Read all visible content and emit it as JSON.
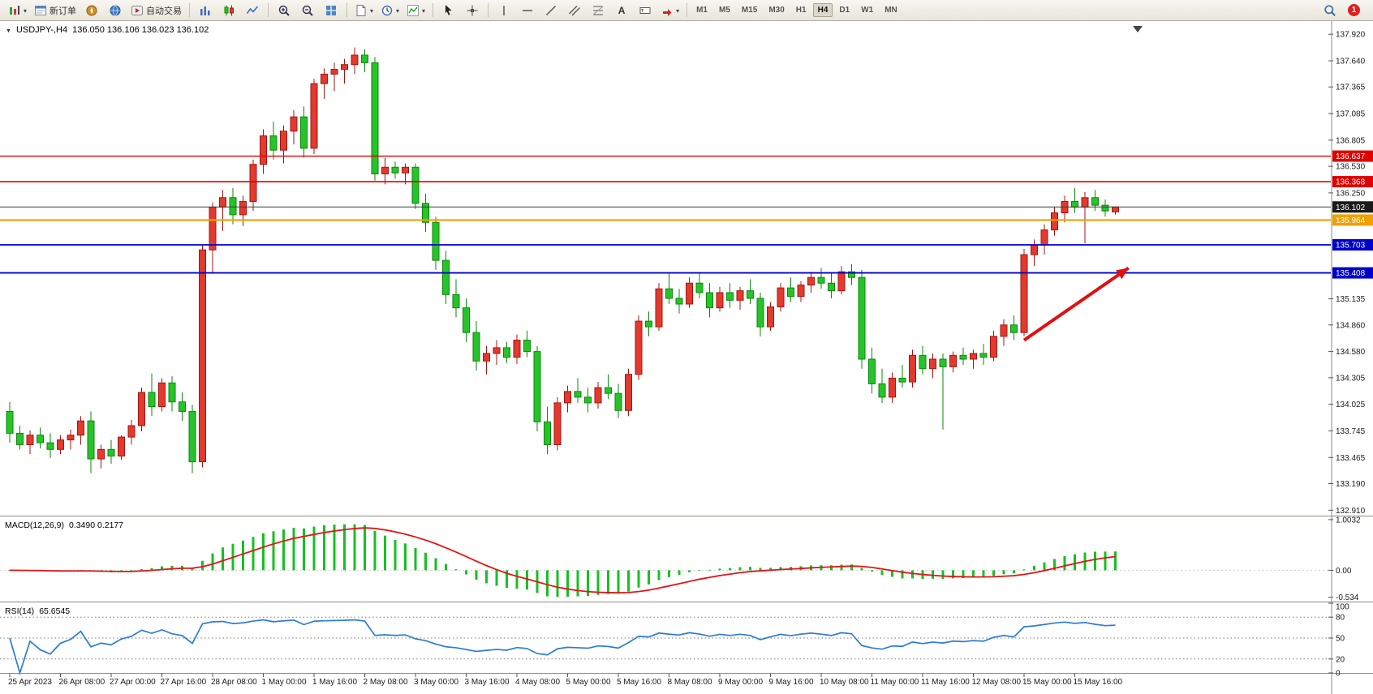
{
  "toolbar": {
    "new_order_label": "新订单",
    "auto_trading_label": "自动交易",
    "text_tool_label": "A",
    "timeframes": [
      "M1",
      "M5",
      "M15",
      "M30",
      "H1",
      "H4",
      "D1",
      "W1",
      "MN"
    ],
    "active_timeframe": "H4",
    "notification_badge": "1"
  },
  "chart_header": {
    "symbol": "USDJPY-,H4",
    "ohlc": "136.050 136.106 136.023 136.102"
  },
  "chart_data": [
    {
      "type": "candlestick",
      "title": "USDJPY-,H4",
      "ylim": [
        132.87,
        137.99
      ],
      "up_color": "#e23a2e",
      "up_border": "#a81410",
      "down_color": "#27c32b",
      "down_border": "#0a8a0a",
      "price_axis_labels": [
        137.92,
        137.64,
        137.365,
        137.085,
        136.805,
        136.53,
        136.25,
        135.135,
        134.86,
        134.58,
        134.305,
        134.025,
        133.745,
        133.465,
        133.19,
        132.91
      ],
      "horizontal_lines": [
        {
          "price": 136.637,
          "color": "#e00000",
          "width": 1.3,
          "label": "136.637",
          "label_bg": "#e00000"
        },
        {
          "price": 136.368,
          "color": "#e00000",
          "width": 1.6,
          "label": "136.368",
          "label_bg": "#e00000"
        },
        {
          "price": 136.102,
          "color": "#3a3a3a",
          "width": 1.0,
          "label": "136.102",
          "label_bg": "#1a1a1a"
        },
        {
          "price": 135.964,
          "color": "#f0a000",
          "width": 2.2,
          "label": "135.964",
          "label_bg": "#f0a000"
        },
        {
          "price": 135.703,
          "color": "#0000cd",
          "width": 1.8,
          "label": "135.703",
          "label_bg": "#0000cd"
        },
        {
          "price": 135.408,
          "color": "#0000cd",
          "width": 1.8,
          "label": "135.408",
          "label_bg": "#0000cd"
        }
      ],
      "annotation_arrow": {
        "from_index": 100,
        "from_price": 134.7,
        "to_index": 110.3,
        "to_price": 135.46,
        "color": "#e01010"
      },
      "time_labels": [
        "25 Apr 2023",
        "26 Apr 08:00",
        "27 Apr 00:00",
        "27 Apr 16:00",
        "28 Apr 08:00",
        "1 May 00:00",
        "1 May 16:00",
        "2 May 08:00",
        "3 May 00:00",
        "3 May 16:00",
        "4 May 08:00",
        "5 May 00:00",
        "5 May 16:00",
        "8 May 08:00",
        "9 May 00:00",
        "9 May 16:00",
        "10 May 08:00",
        "11 May 00:00",
        "11 May 16:00",
        "12 May 08:00",
        "15 May 00:00",
        "15 May 16:00"
      ],
      "candles_ohlc": [
        [
          133.95,
          134.05,
          133.62,
          133.72
        ],
        [
          133.72,
          133.8,
          133.55,
          133.6
        ],
        [
          133.6,
          133.75,
          133.5,
          133.7
        ],
        [
          133.7,
          133.78,
          133.56,
          133.62
        ],
        [
          133.62,
          133.72,
          133.46,
          133.55
        ],
        [
          133.55,
          133.7,
          133.5,
          133.65
        ],
        [
          133.65,
          133.76,
          133.55,
          133.7
        ],
        [
          133.7,
          133.9,
          133.6,
          133.85
        ],
        [
          133.85,
          133.95,
          133.3,
          133.45
        ],
        [
          133.45,
          133.6,
          133.35,
          133.55
        ],
        [
          133.55,
          133.65,
          133.4,
          133.48
        ],
        [
          133.48,
          133.7,
          133.44,
          133.68
        ],
        [
          133.68,
          133.86,
          133.6,
          133.8
        ],
        [
          133.8,
          134.2,
          133.74,
          134.15
        ],
        [
          134.15,
          134.35,
          133.9,
          134.0
        ],
        [
          134.0,
          134.3,
          133.95,
          134.25
        ],
        [
          134.25,
          134.32,
          133.95,
          134.05
        ],
        [
          134.05,
          134.15,
          133.85,
          133.95
        ],
        [
          133.95,
          134.02,
          133.3,
          133.42
        ],
        [
          133.42,
          135.7,
          133.36,
          135.65
        ],
        [
          135.65,
          136.15,
          135.4,
          136.1
        ],
        [
          136.1,
          136.28,
          135.85,
          136.2
        ],
        [
          136.2,
          136.3,
          135.92,
          136.02
        ],
        [
          136.02,
          136.22,
          135.9,
          136.16
        ],
        [
          136.16,
          136.6,
          136.06,
          136.55
        ],
        [
          136.55,
          136.92,
          136.45,
          136.85
        ],
        [
          136.85,
          137.0,
          136.6,
          136.7
        ],
        [
          136.7,
          136.96,
          136.56,
          136.9
        ],
        [
          136.9,
          137.12,
          136.76,
          137.05
        ],
        [
          137.05,
          137.16,
          136.62,
          136.72
        ],
        [
          136.72,
          137.45,
          136.66,
          137.4
        ],
        [
          137.4,
          137.56,
          137.24,
          137.5
        ],
        [
          137.5,
          137.62,
          137.32,
          137.55
        ],
        [
          137.55,
          137.66,
          137.4,
          137.6
        ],
        [
          137.6,
          137.78,
          137.5,
          137.7
        ],
        [
          137.7,
          137.76,
          137.52,
          137.62
        ],
        [
          137.62,
          137.68,
          136.38,
          136.45
        ],
        [
          136.45,
          136.62,
          136.34,
          136.52
        ],
        [
          136.52,
          136.58,
          136.4,
          136.46
        ],
        [
          136.46,
          136.56,
          136.34,
          136.52
        ],
        [
          136.52,
          136.56,
          136.08,
          136.14
        ],
        [
          136.14,
          136.24,
          135.84,
          135.94
        ],
        [
          135.94,
          136.0,
          135.44,
          135.54
        ],
        [
          135.54,
          135.64,
          135.08,
          135.18
        ],
        [
          135.18,
          135.34,
          134.94,
          135.04
        ],
        [
          135.04,
          135.14,
          134.68,
          134.78
        ],
        [
          134.78,
          134.9,
          134.38,
          134.48
        ],
        [
          134.48,
          134.64,
          134.34,
          134.56
        ],
        [
          134.56,
          134.7,
          134.44,
          134.62
        ],
        [
          134.62,
          134.68,
          134.46,
          134.52
        ],
        [
          134.52,
          134.76,
          134.45,
          134.7
        ],
        [
          134.7,
          134.8,
          134.52,
          134.58
        ],
        [
          134.58,
          134.64,
          133.74,
          133.84
        ],
        [
          133.84,
          134.0,
          133.5,
          133.6
        ],
        [
          133.6,
          134.1,
          133.54,
          134.04
        ],
        [
          134.04,
          134.22,
          133.94,
          134.16
        ],
        [
          134.16,
          134.3,
          134.04,
          134.1
        ],
        [
          134.1,
          134.2,
          133.94,
          134.04
        ],
        [
          134.04,
          134.26,
          133.98,
          134.2
        ],
        [
          134.2,
          134.34,
          134.08,
          134.14
        ],
        [
          134.14,
          134.24,
          133.88,
          133.96
        ],
        [
          133.96,
          134.4,
          133.9,
          134.34
        ],
        [
          134.34,
          134.96,
          134.28,
          134.9
        ],
        [
          134.9,
          135.0,
          134.74,
          134.84
        ],
        [
          134.84,
          135.3,
          134.8,
          135.24
        ],
        [
          135.24,
          135.4,
          135.08,
          135.14
        ],
        [
          135.14,
          135.24,
          134.98,
          135.08
        ],
        [
          135.08,
          135.36,
          135.04,
          135.3
        ],
        [
          135.3,
          135.4,
          135.14,
          135.2
        ],
        [
          135.2,
          135.3,
          134.94,
          135.04
        ],
        [
          135.04,
          135.26,
          135.0,
          135.2
        ],
        [
          135.2,
          135.3,
          135.04,
          135.12
        ],
        [
          135.12,
          135.26,
          135.02,
          135.22
        ],
        [
          135.22,
          135.34,
          135.08,
          135.14
        ],
        [
          135.14,
          135.2,
          134.74,
          134.84
        ],
        [
          134.84,
          135.1,
          134.8,
          135.05
        ],
        [
          135.05,
          135.3,
          135.0,
          135.25
        ],
        [
          135.25,
          135.36,
          135.1,
          135.16
        ],
        [
          135.16,
          135.32,
          135.1,
          135.28
        ],
        [
          135.28,
          135.42,
          135.2,
          135.36
        ],
        [
          135.36,
          135.46,
          135.24,
          135.3
        ],
        [
          135.3,
          135.4,
          135.14,
          135.22
        ],
        [
          135.22,
          135.48,
          135.18,
          135.42
        ],
        [
          135.42,
          135.5,
          135.28,
          135.36
        ],
        [
          135.36,
          135.44,
          134.4,
          134.5
        ],
        [
          134.5,
          134.62,
          134.14,
          134.24
        ],
        [
          134.24,
          134.4,
          134.04,
          134.1
        ],
        [
          134.1,
          134.36,
          134.04,
          134.3
        ],
        [
          134.3,
          134.44,
          134.2,
          134.26
        ],
        [
          134.26,
          134.6,
          134.2,
          134.54
        ],
        [
          134.54,
          134.64,
          134.34,
          134.4
        ],
        [
          134.4,
          134.56,
          134.3,
          134.5
        ],
        [
          134.5,
          134.56,
          133.76,
          134.42
        ],
        [
          134.42,
          134.58,
          134.36,
          134.54
        ],
        [
          134.54,
          134.62,
          134.44,
          134.5
        ],
        [
          134.5,
          134.6,
          134.4,
          134.56
        ],
        [
          134.56,
          134.66,
          134.44,
          134.52
        ],
        [
          134.52,
          134.8,
          134.48,
          134.74
        ],
        [
          134.74,
          134.92,
          134.64,
          134.86
        ],
        [
          134.86,
          134.96,
          134.7,
          134.78
        ],
        [
          134.78,
          135.66,
          134.74,
          135.6
        ],
        [
          135.6,
          135.76,
          135.48,
          135.7
        ],
        [
          135.7,
          135.92,
          135.6,
          135.86
        ],
        [
          135.86,
          136.1,
          135.8,
          136.04
        ],
        [
          136.04,
          136.22,
          135.94,
          136.16
        ],
        [
          136.16,
          136.3,
          136.04,
          136.1
        ],
        [
          136.1,
          136.26,
          135.72,
          136.2
        ],
        [
          136.2,
          136.28,
          136.06,
          136.12
        ],
        [
          136.12,
          136.18,
          136.0,
          136.06
        ],
        [
          136.05,
          136.106,
          136.023,
          136.102
        ]
      ]
    },
    {
      "type": "bar",
      "title": "MACD(12,26,9)",
      "current_values": "0.3490 0.2177",
      "fast": 12,
      "slow": 26,
      "signal": 9,
      "axis_labels": [
        "1.0032",
        "0.00",
        "-0.534"
      ],
      "axis_values": [
        1.0032,
        0,
        -0.534
      ],
      "histogram_color": "#17c022",
      "signal_color": "#e01616"
    },
    {
      "type": "line",
      "title": "RSI(14)",
      "current_value": "65.6545",
      "period": 14,
      "levels": [
        80,
        50,
        20
      ],
      "axis_labels": [
        "100",
        "80",
        "50",
        "20",
        "0"
      ],
      "axis_values": [
        100,
        80,
        50,
        20,
        0
      ],
      "line_color": "#2b7cd3"
    }
  ]
}
